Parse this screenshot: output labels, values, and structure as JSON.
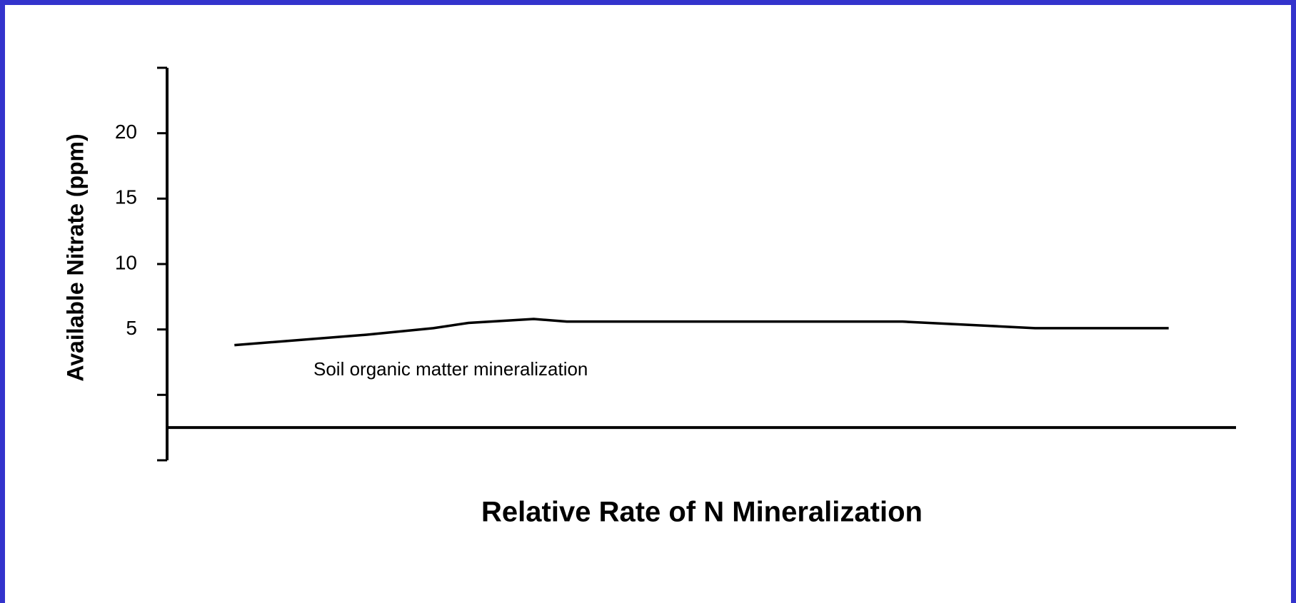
{
  "chart_data": {
    "type": "line",
    "ylabel": "Available Nitrate (ppm)",
    "xlabel": "Relative Rate of N Mineralization",
    "annotation": "Soil organic matter mineralization",
    "x": [
      6.3,
      18.7,
      24.9,
      28.2,
      34.3,
      37.4,
      68.8,
      81.2,
      93.7
    ],
    "values": [
      3.8,
      4.6,
      5.1,
      5.5,
      5.8,
      5.6,
      5.6,
      5.1,
      5.1
    ],
    "color": "#000000",
    "xlim": [
      0,
      100
    ],
    "ylim": [
      -5,
      25
    ],
    "yticks": [
      5,
      10,
      15,
      20
    ],
    "minor_yticks": [
      -5,
      0,
      25
    ],
    "xaxis_y": -2.5,
    "frame_color": "#3333cc"
  }
}
